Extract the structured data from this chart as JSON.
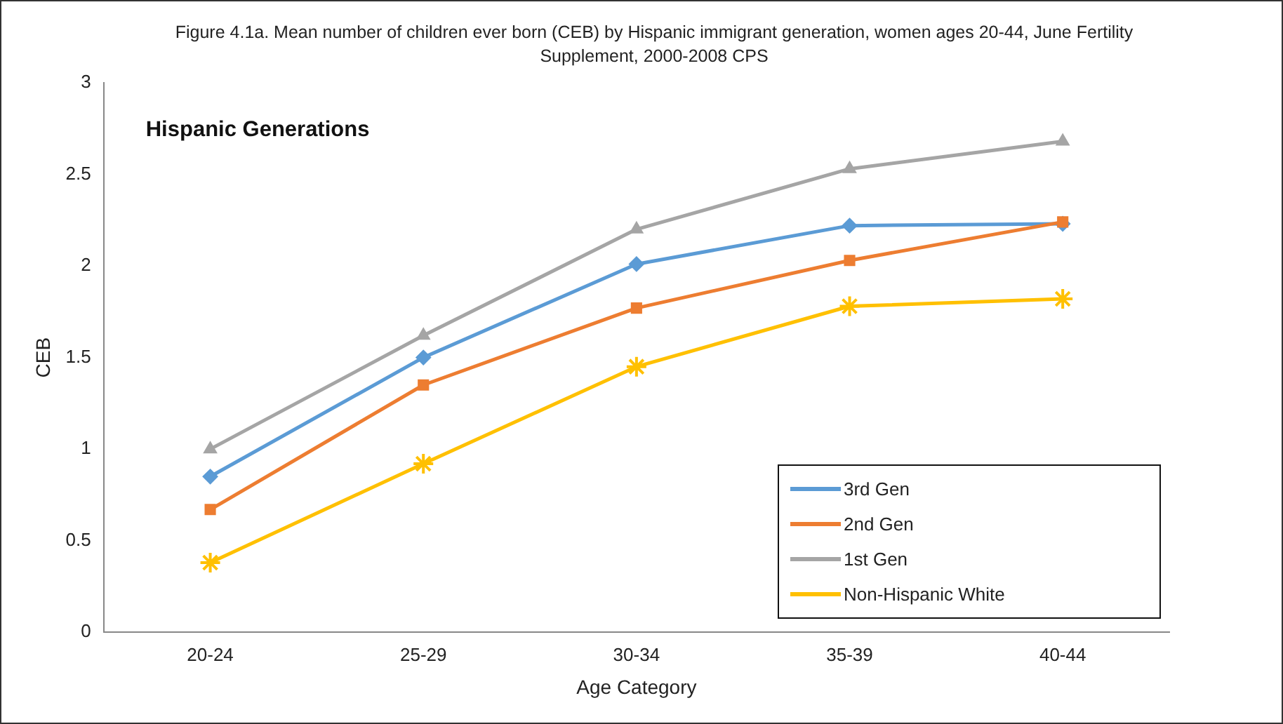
{
  "chart_data": {
    "type": "line",
    "title": "Figure 4.1a. Mean number of children ever born (CEB) by Hispanic immigrant generation, women ages 20-44, June Fertility Supplement, 2000-2008 CPS",
    "xlabel": "Age Category",
    "ylabel": "CEB",
    "categories": [
      "20-24",
      "25-29",
      "30-34",
      "35-39",
      "40-44"
    ],
    "series": [
      {
        "name": "3rd Gen",
        "color": "#5b9bd5",
        "marker": "diamond",
        "values": [
          0.85,
          1.5,
          2.01,
          2.22,
          2.23
        ]
      },
      {
        "name": "2nd Gen",
        "color": "#ed7d31",
        "marker": "square",
        "values": [
          0.67,
          1.35,
          1.77,
          2.03,
          2.24
        ]
      },
      {
        "name": "1st Gen",
        "color": "#a5a5a5",
        "marker": "triangle",
        "values": [
          1.0,
          1.62,
          2.2,
          2.53,
          2.68
        ]
      },
      {
        "name": "Non-Hispanic White",
        "color": "#ffc000",
        "marker": "cross",
        "values": [
          0.38,
          0.92,
          1.45,
          1.78,
          1.82
        ]
      }
    ],
    "ylim": [
      0,
      3
    ],
    "yticks": [
      0,
      0.5,
      1,
      1.5,
      2,
      2.5,
      3
    ],
    "grid": false,
    "legend": "bottom right",
    "line_style": "solid",
    "annotations": [
      "Hispanic Generations"
    ]
  }
}
